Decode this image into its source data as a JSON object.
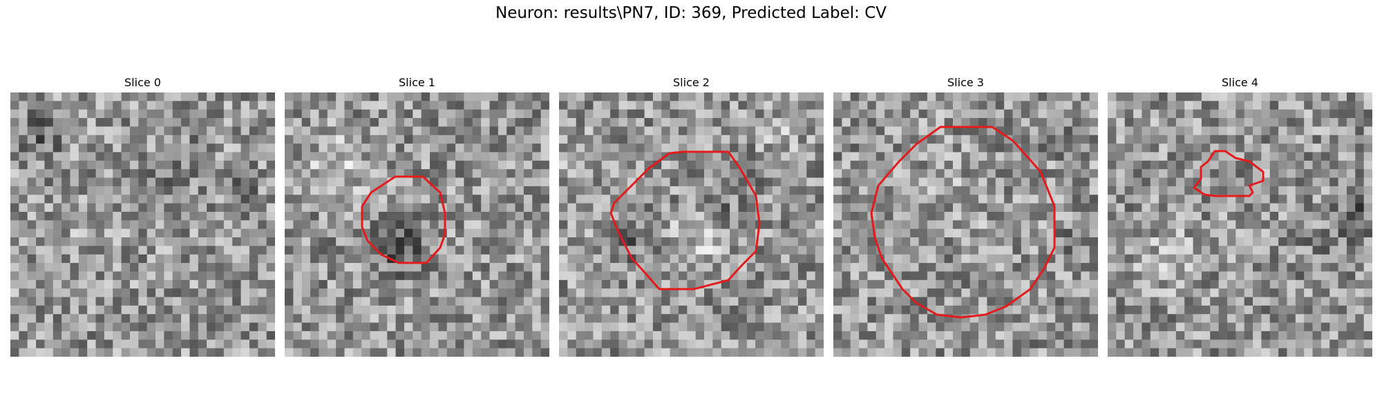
{
  "figure": {
    "title": "Neuron: results\\PN7, ID: 369, Predicted Label: CV",
    "contour_color": "#e41a1c"
  },
  "slices": [
    {
      "label": "Slice 0",
      "has_contour": false
    },
    {
      "label": "Slice 1",
      "has_contour": true
    },
    {
      "label": "Slice 2",
      "has_contour": true
    },
    {
      "label": "Slice 3",
      "has_contour": true
    },
    {
      "label": "Slice 4",
      "has_contour": true
    }
  ]
}
